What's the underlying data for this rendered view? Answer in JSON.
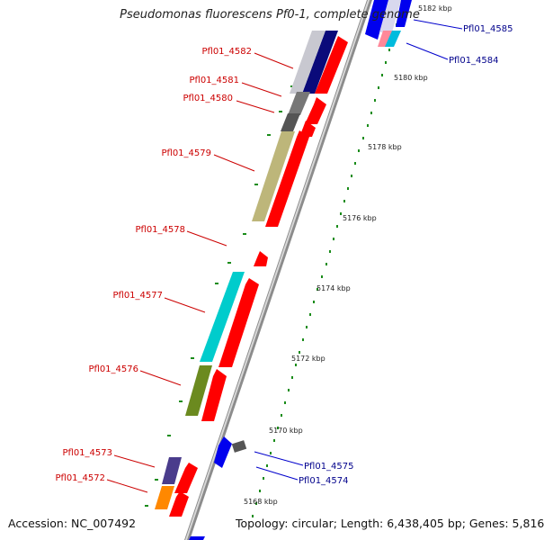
{
  "title": "Pseudomonas fluorescens Pf0-1, complete genome",
  "accession": "Accession: NC_007492",
  "topology": "Topology: circular; Length: 6,438,405 bp; Genes: 5,816",
  "colors": {
    "backbone": "#8c8c8c",
    "left_labels": "#cc0000",
    "right_labels": "#00008b",
    "gene_red": "#ff0000",
    "tick_green": "#1a8c1a"
  },
  "genes_left": [
    {
      "id": "pf4582",
      "label": "Pfl01_4582"
    },
    {
      "id": "pf4581",
      "label": "Pfl01_4581"
    },
    {
      "id": "pf4580",
      "label": "Pfl01_4580"
    },
    {
      "id": "pf4579",
      "label": "Pfl01_4579"
    },
    {
      "id": "pf4578",
      "label": "Pfl01_4578"
    },
    {
      "id": "pf4577",
      "label": "Pfl01_4577"
    },
    {
      "id": "pf4576",
      "label": "Pfl01_4576"
    },
    {
      "id": "pf4573",
      "label": "Pfl01_4573"
    },
    {
      "id": "pf4572",
      "label": "Pfl01_4572"
    }
  ],
  "genes_right": [
    {
      "id": "pf4585",
      "label": "Pfl01_4585"
    },
    {
      "id": "pf4584",
      "label": "Pfl01_4584"
    },
    {
      "id": "pf4575",
      "label": "Pfl01_4575"
    },
    {
      "id": "pf4574",
      "label": "Pfl01_4574"
    }
  ],
  "scale_labels": [
    "5182 kbp",
    "5180 kbp",
    "5178 kbp",
    "5176 kbp",
    "5174 kbp",
    "5172 kbp",
    "5170 kbp",
    "5168 kbp"
  ]
}
